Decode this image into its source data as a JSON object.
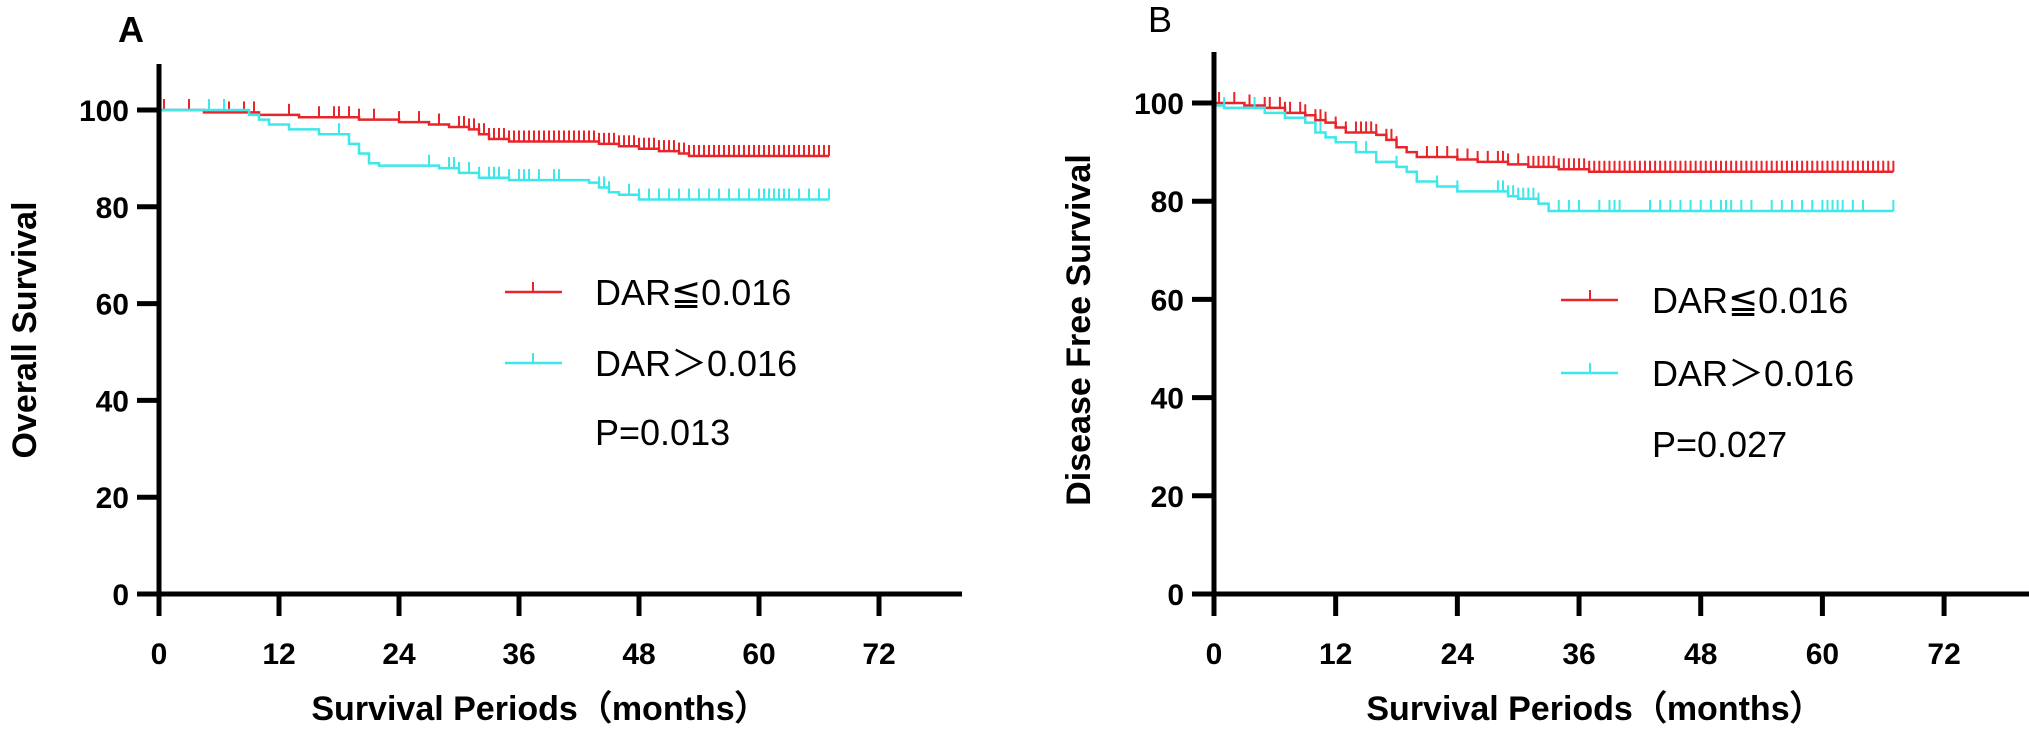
{
  "chart_data": [
    {
      "type": "line",
      "subtype": "kaplan-meier",
      "panel_label": "A",
      "panel_label_bold": true,
      "xlabel": "Survival Periods（months）",
      "ylabel": "Overall Survival",
      "xlim": [
        0,
        72
      ],
      "ylim": [
        0,
        100
      ],
      "xticks": [
        "0",
        "12",
        "24",
        "36",
        "48",
        "60",
        "72"
      ],
      "yticks": [
        "0",
        "20",
        "40",
        "60",
        "80",
        "100"
      ],
      "grid": false,
      "legend_position": "center-right",
      "p_value_text": "P=0.013",
      "series": [
        {
          "name": "DAR≦0.016",
          "color": "#e8252a",
          "steps": [
            [
              0,
              100
            ],
            [
              4.5,
              99.5
            ],
            [
              10,
              99
            ],
            [
              14,
              98.5
            ],
            [
              20,
              98
            ],
            [
              24,
              97.5
            ],
            [
              27,
              97
            ],
            [
              29,
              96.5
            ],
            [
              31,
              96
            ],
            [
              32,
              95
            ],
            [
              33,
              94
            ],
            [
              35,
              93.5
            ],
            [
              40,
              93.5
            ],
            [
              44,
              93
            ],
            [
              46,
              92.5
            ],
            [
              48,
              92
            ],
            [
              50,
              91.5
            ],
            [
              52,
              91
            ],
            [
              53,
              90.5
            ],
            [
              67,
              90.5
            ]
          ],
          "censor_times": [
            0.5,
            3,
            5,
            7,
            8.5,
            9.5,
            13,
            16,
            17.5,
            18,
            19,
            20,
            21.5,
            24,
            26,
            28,
            30,
            30.5,
            31,
            31.5,
            32,
            32.5,
            33,
            33.5,
            34,
            34.5,
            35,
            35.5,
            36,
            36.5,
            37,
            37.5,
            38,
            38.5,
            39,
            39.5,
            40,
            40.5,
            41,
            41.5,
            42,
            42.5,
            43,
            43.5,
            44,
            44.5,
            45,
            45.5,
            46,
            46.5,
            47,
            47.5,
            48,
            48.5,
            49,
            49.5,
            50,
            50.5,
            51,
            51.5,
            52,
            52.5,
            53,
            53.5,
            54,
            54.5,
            55,
            55.5,
            56,
            56.5,
            57,
            57.5,
            58,
            58.5,
            59,
            59.5,
            60,
            60.5,
            61,
            61.5,
            62,
            62.5,
            63,
            63.5,
            64,
            64.5,
            65,
            65.5,
            66,
            66.5,
            67
          ]
        },
        {
          "name": "DAR＞0.016",
          "color": "#3de8ea",
          "steps": [
            [
              0,
              100
            ],
            [
              9,
              99
            ],
            [
              10,
              98
            ],
            [
              11,
              97
            ],
            [
              13,
              96
            ],
            [
              16,
              95
            ],
            [
              19,
              93
            ],
            [
              20,
              91
            ],
            [
              21,
              89
            ],
            [
              22,
              88.5
            ],
            [
              28,
              88
            ],
            [
              30,
              87
            ],
            [
              32,
              86
            ],
            [
              35,
              85.5
            ],
            [
              43,
              85
            ],
            [
              44,
              84
            ],
            [
              45,
              83
            ],
            [
              46,
              82.5
            ],
            [
              48,
              81.5
            ],
            [
              67,
              81.5
            ]
          ],
          "censor_times": [
            5,
            6.5,
            18,
            27,
            29,
            29.5,
            30,
            31,
            32,
            33,
            33.5,
            34,
            35,
            36,
            36.5,
            37,
            38,
            39.5,
            40,
            44,
            44.5,
            45,
            47,
            48,
            49,
            50,
            51,
            52,
            53,
            54,
            55,
            56,
            57,
            58,
            59,
            60,
            60.5,
            61,
            61.5,
            62,
            62.5,
            63,
            64,
            65,
            66,
            67
          ]
        }
      ]
    },
    {
      "type": "line",
      "subtype": "kaplan-meier",
      "panel_label": "B",
      "panel_label_bold": false,
      "xlabel": "Survival Periods（months）",
      "ylabel": "Disease Free Survival",
      "xlim": [
        0,
        72
      ],
      "ylim": [
        0,
        100
      ],
      "xticks": [
        "0",
        "12",
        "24",
        "36",
        "48",
        "60",
        "72"
      ],
      "yticks": [
        "0",
        "20",
        "40",
        "60",
        "80",
        "100"
      ],
      "grid": false,
      "legend_position": "center-right",
      "p_value_text": "P=0.027",
      "series": [
        {
          "name": "DAR≦0.016",
          "color": "#e8252a",
          "steps": [
            [
              0,
              100
            ],
            [
              3,
              99.5
            ],
            [
              5,
              99
            ],
            [
              7,
              98
            ],
            [
              9,
              97.5
            ],
            [
              10,
              96.5
            ],
            [
              11,
              96
            ],
            [
              12,
              95
            ],
            [
              13,
              94
            ],
            [
              16,
              93.5
            ],
            [
              17,
              92.5
            ],
            [
              18,
              91
            ],
            [
              19,
              90
            ],
            [
              20,
              89
            ],
            [
              24,
              88.5
            ],
            [
              26,
              88
            ],
            [
              29,
              87.5
            ],
            [
              31,
              87
            ],
            [
              34,
              86.5
            ],
            [
              37,
              86
            ],
            [
              67,
              86
            ]
          ],
          "censor_times": [
            0.5,
            2,
            3.5,
            5,
            5.5,
            6.5,
            7,
            7.5,
            8.5,
            9,
            10,
            10.5,
            11,
            12,
            13,
            14,
            14.5,
            15,
            15.5,
            16,
            17,
            17.5,
            18,
            21,
            22,
            23,
            24,
            25,
            26,
            27,
            28,
            28.5,
            29,
            30,
            31,
            31.5,
            32,
            32.5,
            33,
            33.5,
            34,
            34.5,
            35,
            35.5,
            36,
            36.5,
            37,
            37.5,
            38,
            38.5,
            39,
            39.5,
            40,
            40.5,
            41,
            41.5,
            42,
            42.5,
            43,
            43.5,
            44,
            44.5,
            45,
            45.5,
            46,
            46.5,
            47,
            47.5,
            48,
            48.5,
            49,
            49.5,
            50,
            50.5,
            51,
            51.5,
            52,
            52.5,
            53,
            53.5,
            54,
            54.5,
            55,
            55.5,
            56,
            56.5,
            57,
            57.5,
            58,
            58.5,
            59,
            59.5,
            60,
            60.5,
            61,
            61.5,
            62,
            62.5,
            63,
            63.5,
            64,
            64.5,
            65,
            65.5,
            66,
            66.5,
            67
          ]
        },
        {
          "name": "DAR＞0.016",
          "color": "#3de8ea",
          "steps": [
            [
              0,
              99.5
            ],
            [
              1,
              99
            ],
            [
              5,
              98
            ],
            [
              7,
              97
            ],
            [
              9,
              96
            ],
            [
              10,
              94
            ],
            [
              11,
              93
            ],
            [
              12,
              92
            ],
            [
              14,
              90
            ],
            [
              16,
              88
            ],
            [
              18,
              87
            ],
            [
              19,
              86
            ],
            [
              20,
              84
            ],
            [
              22,
              83
            ],
            [
              24,
              82
            ],
            [
              28,
              82
            ],
            [
              29,
              81
            ],
            [
              30,
              80.5
            ],
            [
              32,
              79.5
            ],
            [
              33,
              78
            ],
            [
              67,
              78
            ]
          ],
          "censor_times": [
            1,
            4,
            10.5,
            15,
            18,
            22,
            24,
            28,
            28.5,
            29,
            29.5,
            30,
            30.5,
            31,
            31.5,
            32,
            34,
            35,
            36,
            38,
            39,
            39.5,
            40,
            43,
            44,
            45,
            46,
            47,
            48,
            49,
            50,
            50.5,
            51,
            52,
            53,
            55,
            56,
            57,
            58,
            59,
            60,
            60.5,
            61,
            61.5,
            62,
            63,
            64,
            67
          ]
        }
      ]
    }
  ]
}
